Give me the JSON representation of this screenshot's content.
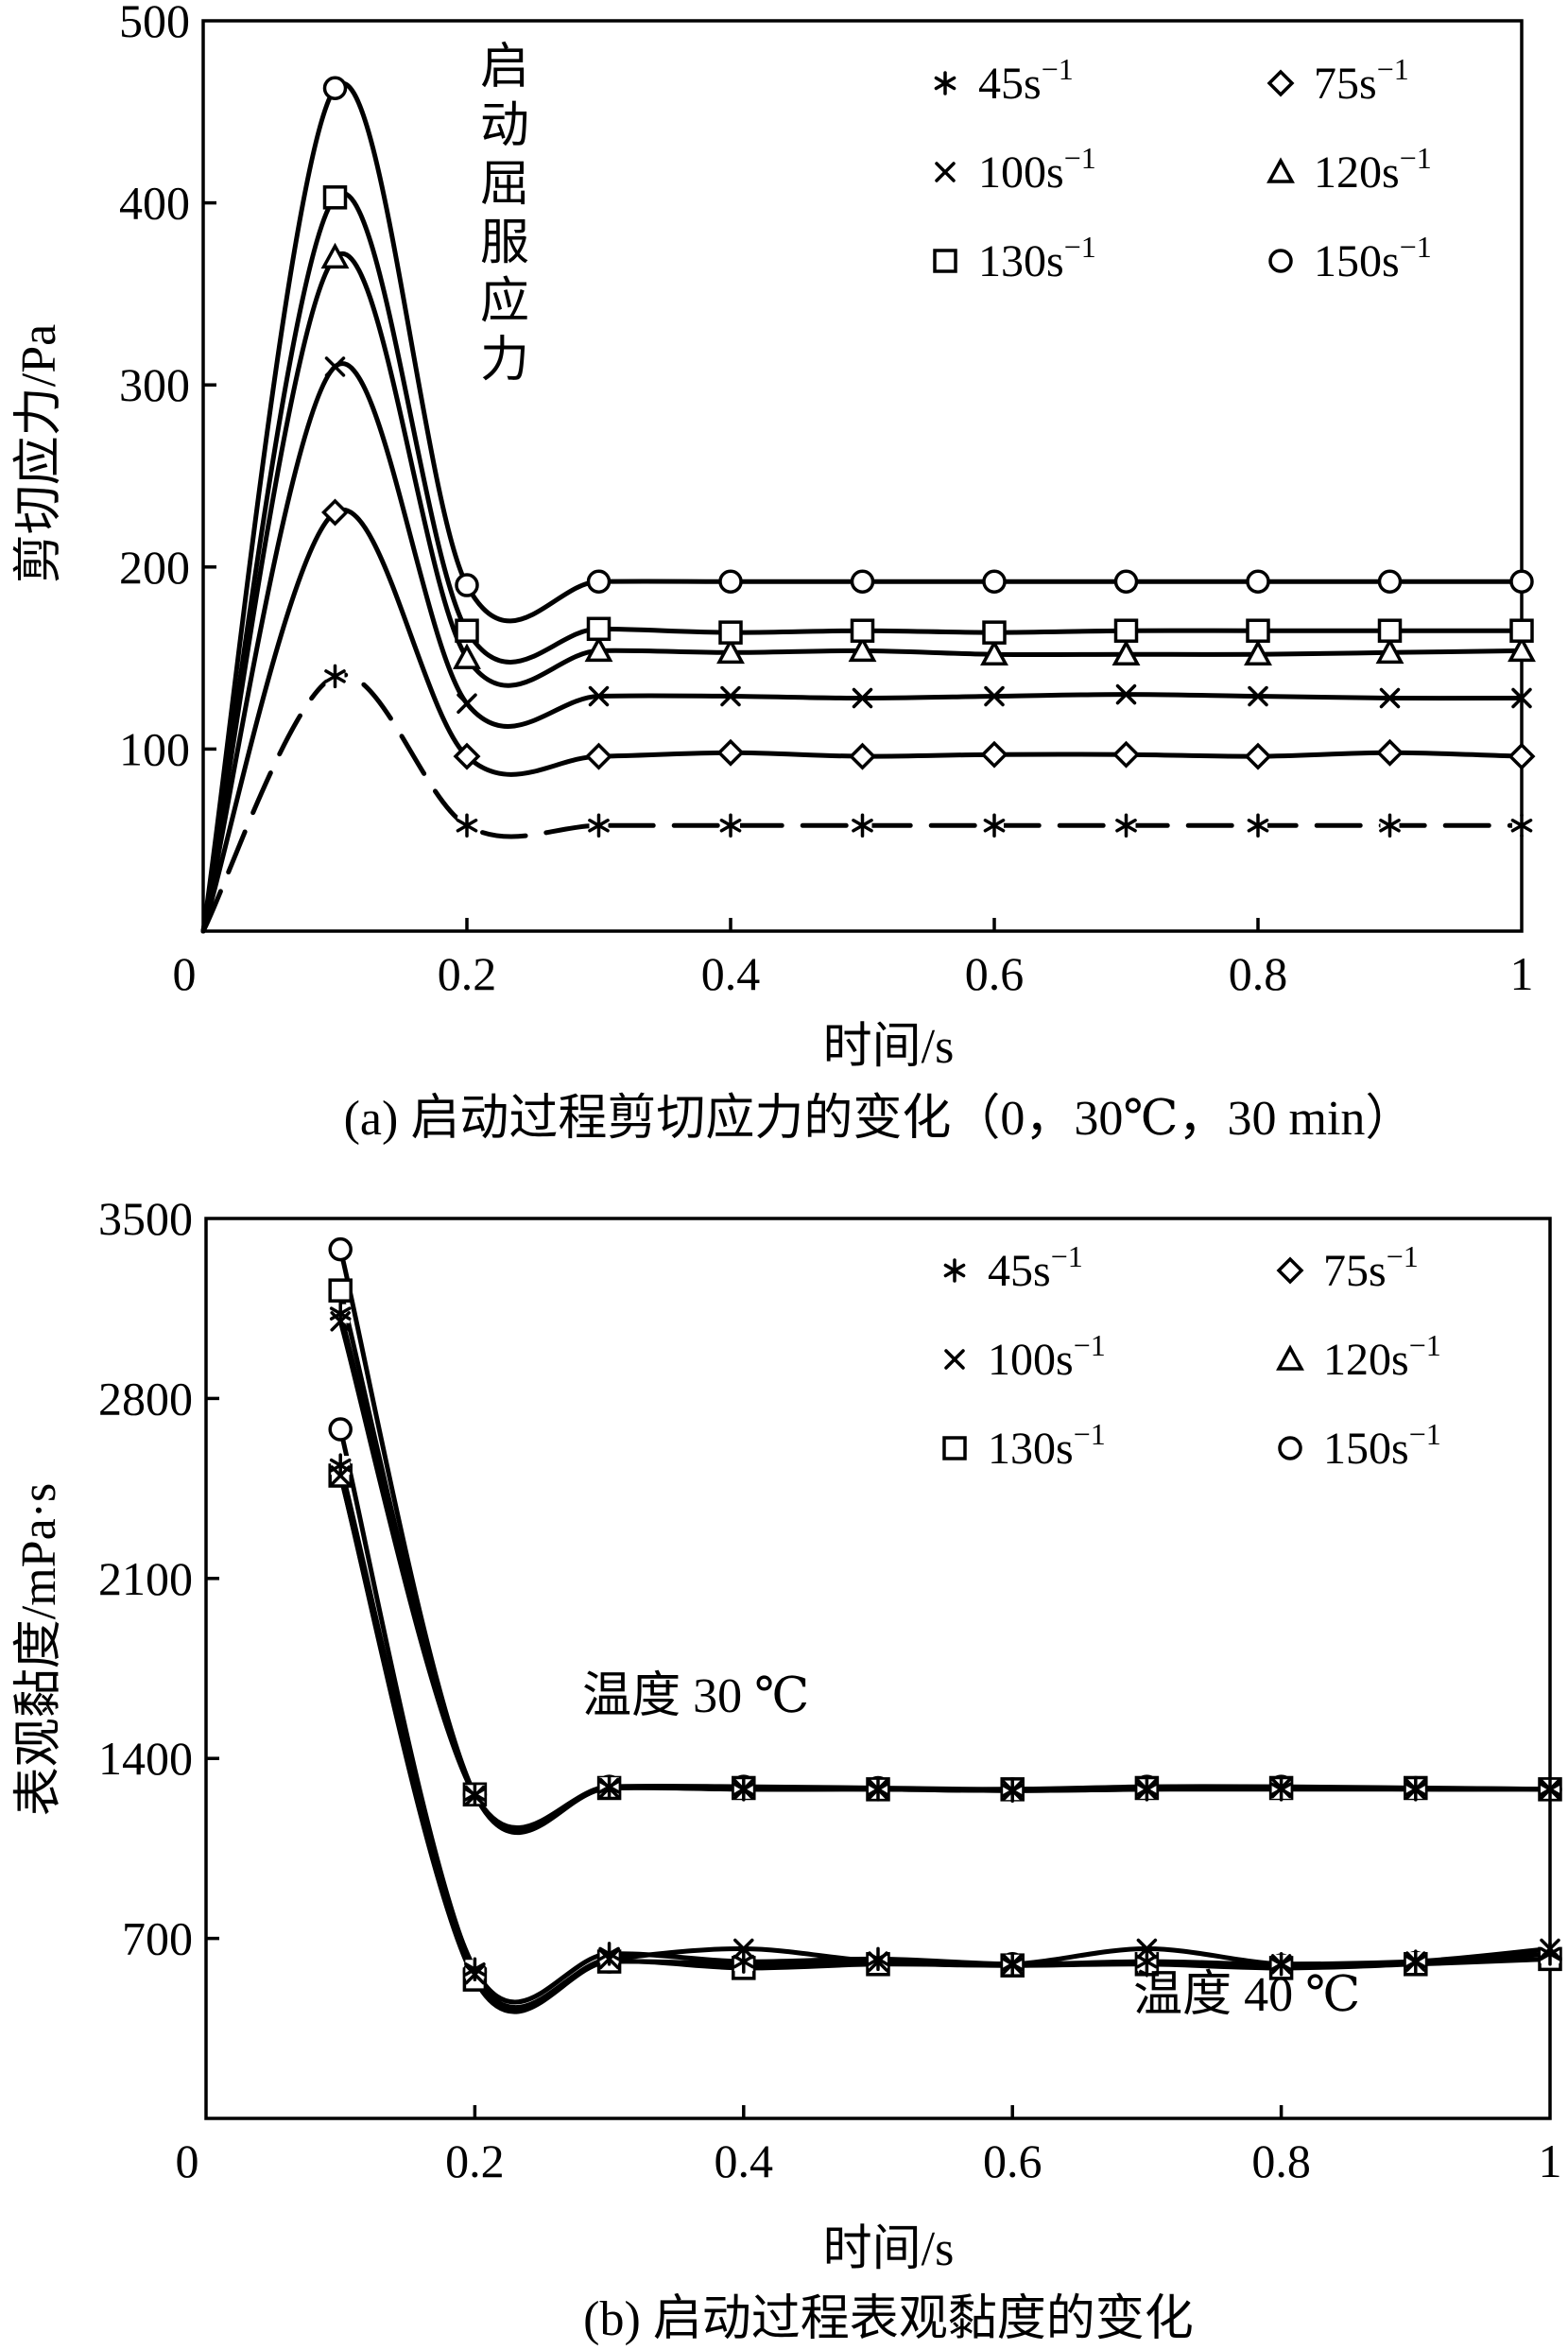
{
  "chart_data": [
    {
      "id": "a",
      "type": "line",
      "caption": "(a) 启动过程剪切应力的变化（0，30℃，30 min）",
      "xlabel": "时间/s",
      "ylabel": "剪切应力/Pa",
      "xlim": [
        0,
        1
      ],
      "ylim": [
        0,
        500
      ],
      "xticks": [
        {
          "value": 0,
          "label": "0"
        },
        {
          "value": 0.2,
          "label": "0.2"
        },
        {
          "value": 0.4,
          "label": "0.4"
        },
        {
          "value": 0.6,
          "label": "0.6"
        },
        {
          "value": 0.8,
          "label": "0.8"
        },
        {
          "value": 1,
          "label": "1"
        }
      ],
      "yticks": [
        {
          "value": 100,
          "label": "100"
        },
        {
          "value": 200,
          "label": "200"
        },
        {
          "value": 300,
          "label": "300"
        },
        {
          "value": 400,
          "label": "400"
        },
        {
          "value": 500,
          "label": "500"
        }
      ],
      "grid": false,
      "legend_position": "top-right",
      "annotation": "启动屈服应力",
      "series": [
        {
          "name": "45s",
          "sup": "−1",
          "marker": "asterisk",
          "dashed": true,
          "x": [
            0,
            0.1,
            0.2,
            0.3,
            0.4,
            0.5,
            0.6,
            0.7,
            0.8,
            0.9,
            1.0
          ],
          "y": [
            0,
            140,
            58,
            58,
            58,
            58,
            58,
            58,
            58,
            58,
            58
          ]
        },
        {
          "name": "75s",
          "sup": "−1",
          "marker": "diamond",
          "dashed": false,
          "x": [
            0,
            0.1,
            0.2,
            0.3,
            0.4,
            0.5,
            0.6,
            0.7,
            0.8,
            0.9,
            1.0
          ],
          "y": [
            0,
            230,
            96,
            96,
            98,
            96,
            97,
            97,
            96,
            98,
            96
          ]
        },
        {
          "name": "100s",
          "sup": "−1",
          "marker": "cross",
          "dashed": false,
          "x": [
            0,
            0.1,
            0.2,
            0.3,
            0.4,
            0.5,
            0.6,
            0.7,
            0.8,
            0.9,
            1.0
          ],
          "y": [
            0,
            310,
            125,
            129,
            129,
            128,
            129,
            130,
            129,
            128,
            128
          ]
        },
        {
          "name": "120s",
          "sup": "−1",
          "marker": "triangle",
          "dashed": false,
          "x": [
            0,
            0.1,
            0.2,
            0.3,
            0.4,
            0.5,
            0.6,
            0.7,
            0.8,
            0.9,
            1.0
          ],
          "y": [
            0,
            370,
            150,
            154,
            153,
            154,
            152,
            152,
            152,
            153,
            154
          ]
        },
        {
          "name": "130s",
          "sup": "−1",
          "marker": "square",
          "dashed": false,
          "x": [
            0,
            0.1,
            0.2,
            0.3,
            0.4,
            0.5,
            0.6,
            0.7,
            0.8,
            0.9,
            1.0
          ],
          "y": [
            0,
            403,
            165,
            166,
            164,
            165,
            164,
            165,
            165,
            165,
            165
          ]
        },
        {
          "name": "150s",
          "sup": "−1",
          "marker": "circle",
          "dashed": false,
          "x": [
            0,
            0.1,
            0.2,
            0.3,
            0.4,
            0.5,
            0.6,
            0.7,
            0.8,
            0.9,
            1.0
          ],
          "y": [
            0,
            463,
            190,
            192,
            192,
            192,
            192,
            192,
            192,
            192,
            192
          ]
        }
      ]
    },
    {
      "id": "b",
      "type": "line",
      "caption": "(b) 启动过程表观黏度的变化",
      "xlabel": "时间/s",
      "ylabel": "表观黏度/mPa·s",
      "xlim": [
        0,
        1
      ],
      "ylim": [
        0,
        3500
      ],
      "xticks": [
        {
          "value": 0,
          "label": "0"
        },
        {
          "value": 0.2,
          "label": "0.2"
        },
        {
          "value": 0.4,
          "label": "0.4"
        },
        {
          "value": 0.6,
          "label": "0.6"
        },
        {
          "value": 0.8,
          "label": "0.8"
        },
        {
          "value": 1,
          "label": "1"
        }
      ],
      "yticks": [
        {
          "value": 700,
          "label": "700"
        },
        {
          "value": 1400,
          "label": "1400"
        },
        {
          "value": 2100,
          "label": "2100"
        },
        {
          "value": 2800,
          "label": "2800"
        },
        {
          "value": 3500,
          "label": "3500"
        }
      ],
      "grid": false,
      "legend_position": "top-right",
      "annotations": [
        {
          "text": "温度 30 ℃",
          "x": 0.28,
          "y": 1580
        },
        {
          "text": "温度 40 ℃",
          "x": 0.69,
          "y": 420
        }
      ],
      "legend": [
        {
          "name": "45s",
          "sup": "−1",
          "marker": "asterisk"
        },
        {
          "name": "75s",
          "sup": "−1",
          "marker": "diamond"
        },
        {
          "name": "100s",
          "sup": "−1",
          "marker": "cross"
        },
        {
          "name": "120s",
          "sup": "−1",
          "marker": "triangle"
        },
        {
          "name": "130s",
          "sup": "−1",
          "marker": "square"
        },
        {
          "name": "150s",
          "sup": "−1",
          "marker": "circle"
        }
      ],
      "curves": [
        {
          "group": "温度 30 ℃",
          "marker": "circle",
          "x": [
            0.1,
            0.2,
            0.3,
            0.4,
            0.5,
            0.6,
            0.7,
            0.8,
            0.9,
            1.0
          ],
          "y": [
            3380,
            1260,
            1290,
            1290,
            1285,
            1280,
            1290,
            1290,
            1285,
            1280
          ]
        },
        {
          "group": "温度 30 ℃",
          "marker": "square",
          "x": [
            0.1,
            0.2,
            0.3,
            0.4,
            0.5,
            0.6,
            0.7,
            0.8,
            0.9,
            1.0
          ],
          "y": [
            3220,
            1260,
            1285,
            1285,
            1280,
            1280,
            1285,
            1285,
            1285,
            1280
          ]
        },
        {
          "group": "温度 30 ℃",
          "marker": "asterisk",
          "x": [
            0.1,
            0.2,
            0.3,
            0.4,
            0.5,
            0.6,
            0.7,
            0.8,
            0.9,
            1.0
          ],
          "y": [
            3130,
            1260,
            1290,
            1280,
            1280,
            1275,
            1280,
            1280,
            1280,
            1280
          ]
        },
        {
          "group": "温度 30 ℃",
          "marker": "cross",
          "x": [
            0.1,
            0.2,
            0.3,
            0.4,
            0.5,
            0.6,
            0.7,
            0.8,
            0.9,
            1.0
          ],
          "y": [
            3100,
            1255,
            1285,
            1280,
            1280,
            1275,
            1280,
            1285,
            1280,
            1280
          ]
        },
        {
          "group": "温度 40 ℃",
          "marker": "circle",
          "x": [
            0.1,
            0.2,
            0.3,
            0.4,
            0.5,
            0.6,
            0.7,
            0.8,
            0.9,
            1.0
          ],
          "y": [
            2680,
            570,
            610,
            600,
            605,
            600,
            605,
            595,
            605,
            620
          ]
        },
        {
          "group": "温度 40 ℃",
          "marker": "square",
          "x": [
            0.1,
            0.2,
            0.3,
            0.4,
            0.5,
            0.6,
            0.7,
            0.8,
            0.9,
            1.0
          ],
          "y": [
            2500,
            540,
            610,
            585,
            600,
            595,
            600,
            585,
            600,
            620
          ]
        },
        {
          "group": "温度 40 ℃",
          "marker": "asterisk",
          "x": [
            0.1,
            0.2,
            0.3,
            0.4,
            0.5,
            0.6,
            0.7,
            0.8,
            0.9,
            1.0
          ],
          "y": [
            2540,
            580,
            640,
            610,
            620,
            600,
            610,
            600,
            610,
            640
          ]
        },
        {
          "group": "温度 40 ℃",
          "marker": "cross",
          "x": [
            0.1,
            0.2,
            0.3,
            0.4,
            0.5,
            0.6,
            0.7,
            0.8,
            0.9,
            1.0
          ],
          "y": [
            2500,
            560,
            620,
            660,
            610,
            600,
            660,
            600,
            610,
            660
          ]
        }
      ]
    }
  ]
}
